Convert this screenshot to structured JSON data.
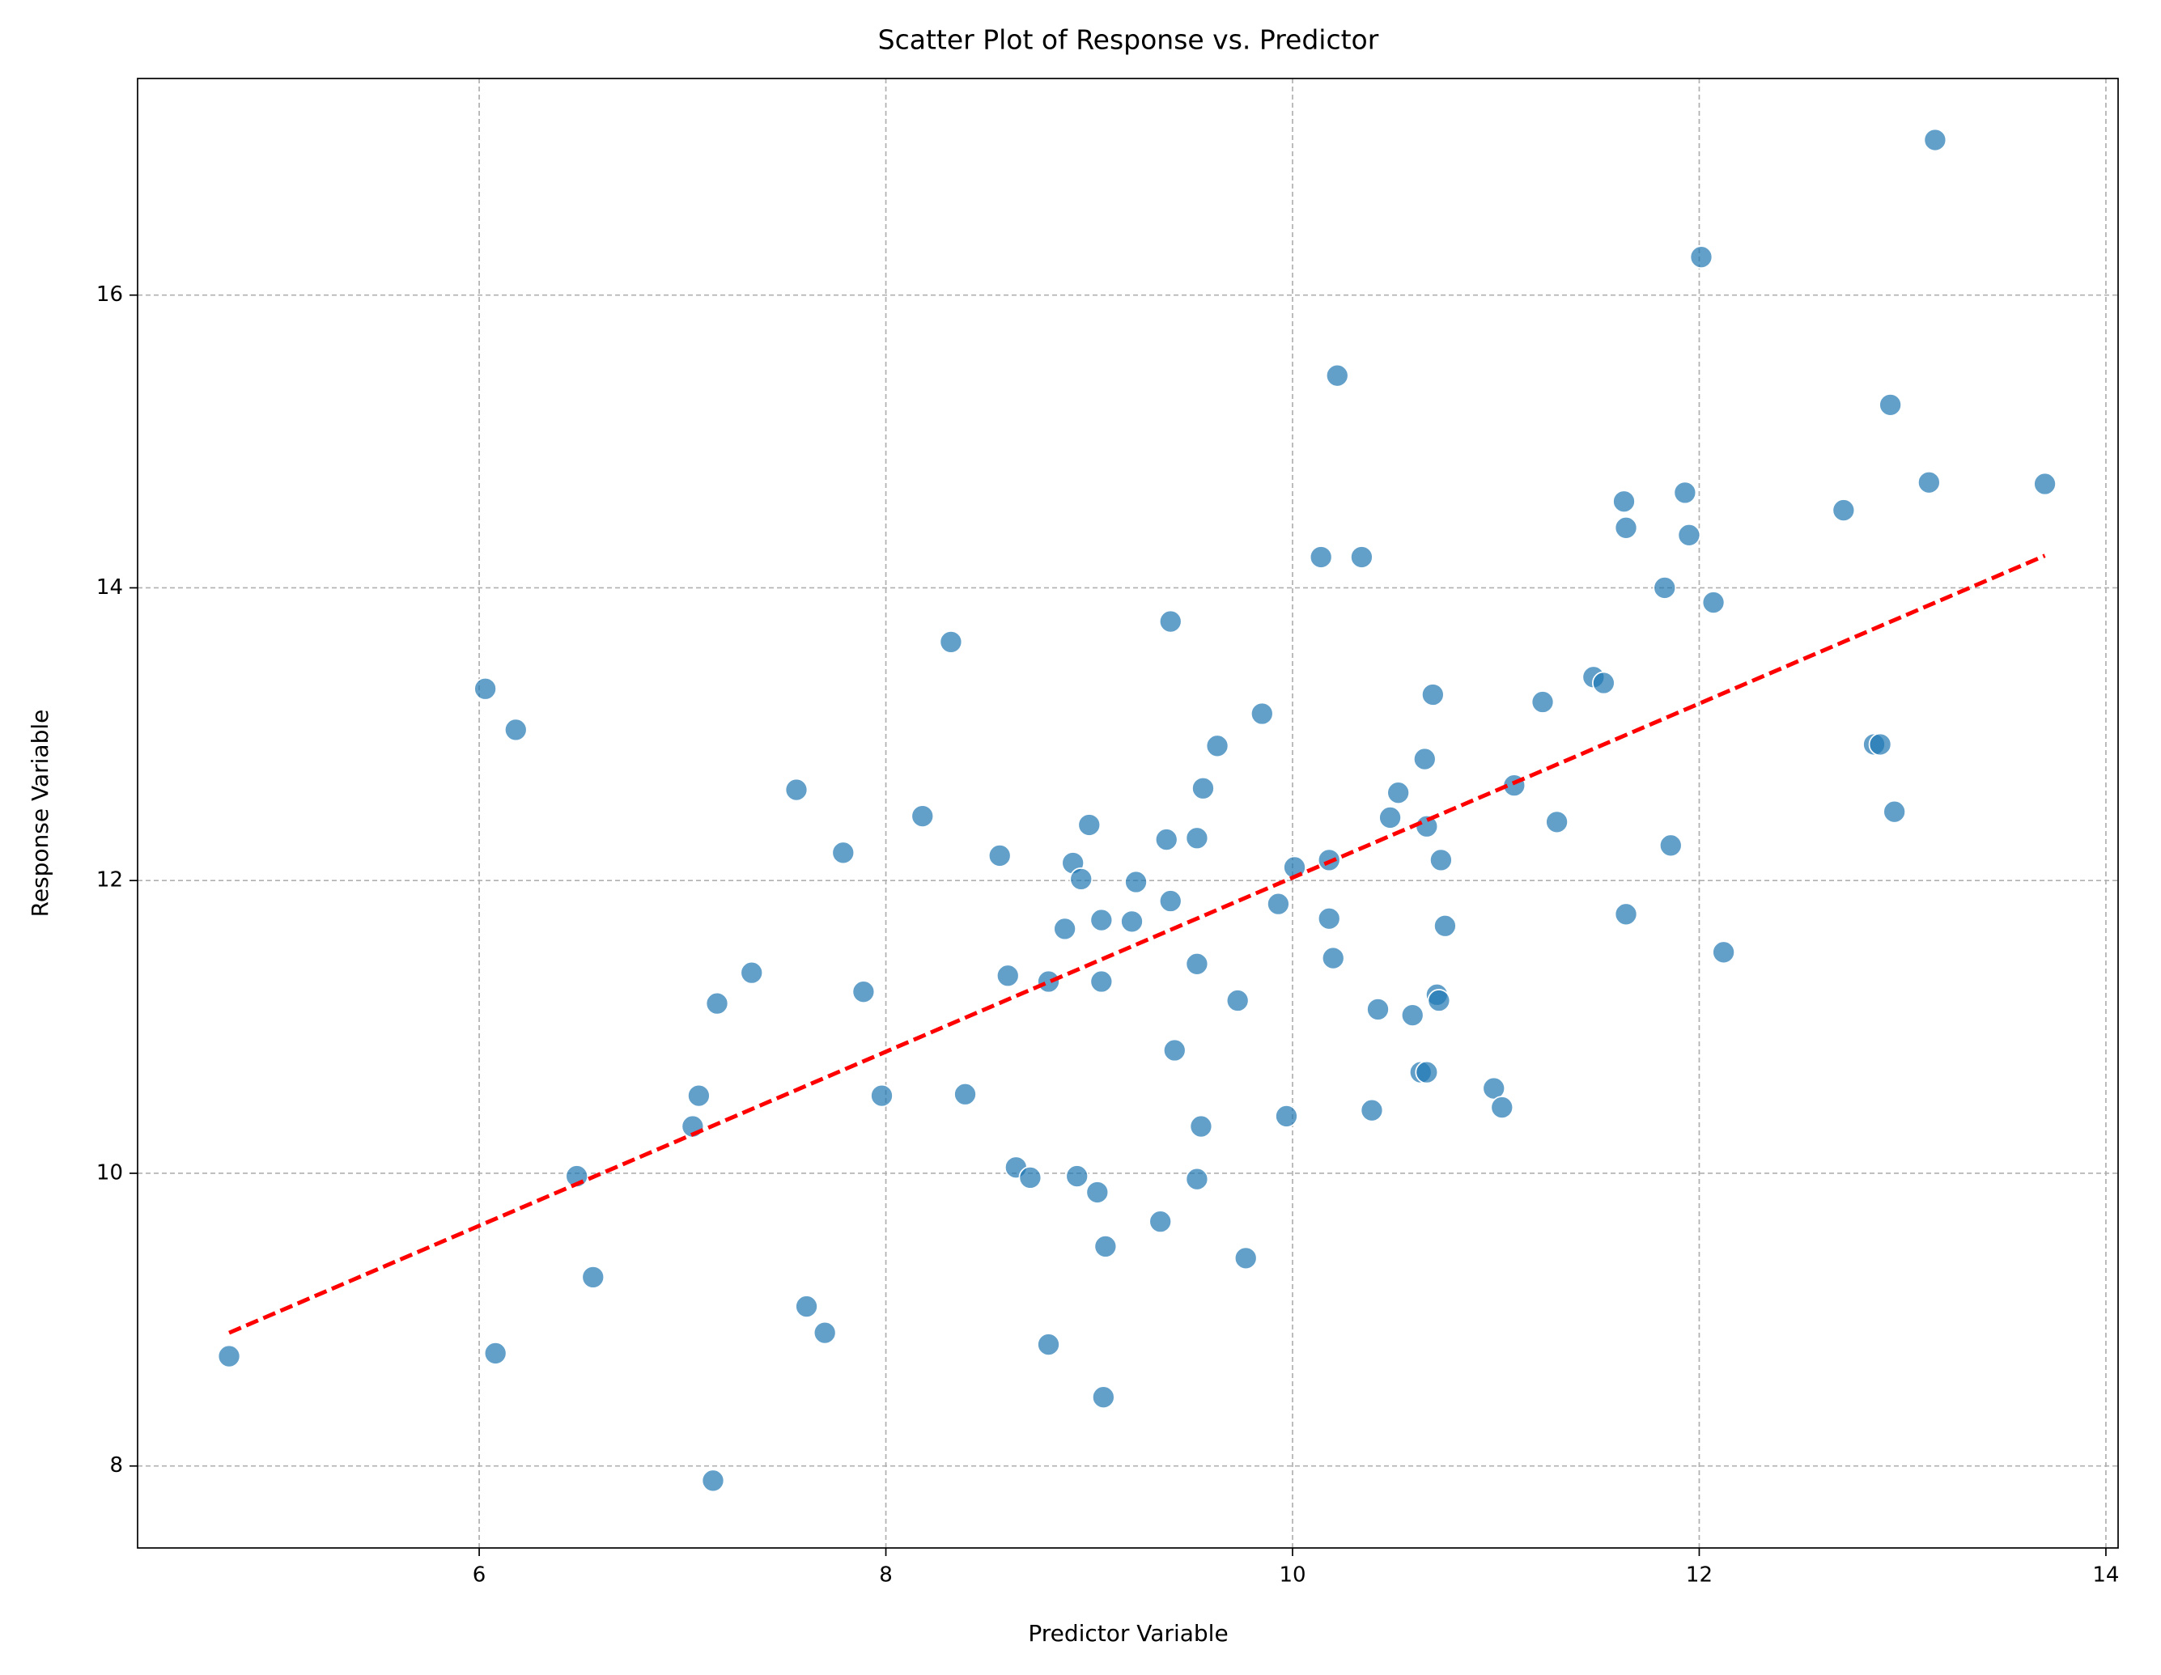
{
  "chart_data": {
    "type": "scatter",
    "title": "Scatter Plot of Response vs. Predictor",
    "x_label": "Predictor Variable",
    "y_label": "Response Variable",
    "xlim": [
      4.32,
      14.06
    ],
    "ylim": [
      7.44,
      17.48
    ],
    "xticks": [
      6,
      8,
      10,
      12,
      14
    ],
    "yticks": [
      8,
      10,
      12,
      14,
      16
    ],
    "grid": true,
    "series": [
      {
        "color": "#1f77b4",
        "x": [
          4.77,
          6.03,
          6.18,
          6.08,
          6.48,
          6.56,
          7.15,
          7.05,
          7.08,
          7.17,
          7.34,
          7.56,
          7.61,
          7.7,
          7.79,
          7.89,
          7.98,
          8.18,
          8.32,
          8.39,
          8.56,
          8.6,
          8.64,
          8.71,
          8.8,
          8.8,
          8.88,
          8.92,
          8.94,
          8.96,
          9.0,
          9.04,
          9.06,
          9.06,
          9.07,
          9.08,
          9.21,
          9.23,
          9.35,
          9.38,
          9.4,
          9.4,
          9.42,
          9.53,
          9.53,
          9.53,
          9.55,
          9.56,
          9.63,
          9.73,
          9.77,
          9.85,
          9.93,
          9.97,
          10.01,
          10.14,
          10.18,
          10.18,
          10.2,
          10.22,
          10.34,
          10.39,
          10.42,
          10.48,
          10.52,
          10.59,
          10.63,
          10.66,
          10.65,
          10.66,
          10.69,
          10.71,
          10.72,
          10.73,
          10.75,
          10.99,
          11.03,
          11.09,
          11.23,
          11.3,
          11.48,
          11.53,
          11.63,
          11.64,
          11.64,
          11.83,
          11.86,
          11.93,
          11.95,
          12.01,
          12.07,
          12.12,
          12.71,
          12.94,
          12.96,
          12.86,
          12.89,
          13.13,
          13.16,
          13.7
        ],
        "values": [
          8.75,
          13.31,
          13.03,
          8.77,
          9.98,
          9.29,
          7.9,
          10.32,
          10.53,
          11.16,
          11.37,
          12.62,
          9.09,
          8.91,
          12.19,
          11.24,
          10.53,
          12.44,
          13.63,
          10.54,
          12.17,
          11.35,
          10.04,
          9.97,
          8.83,
          11.31,
          11.67,
          12.12,
          9.98,
          12.01,
          12.38,
          9.87,
          11.73,
          11.31,
          8.47,
          9.5,
          11.72,
          11.99,
          9.67,
          12.28,
          13.77,
          11.86,
          10.84,
          11.43,
          12.29,
          9.96,
          10.32,
          12.63,
          12.92,
          11.18,
          9.42,
          13.14,
          11.84,
          10.39,
          12.09,
          14.21,
          12.14,
          11.74,
          11.47,
          15.45,
          14.21,
          10.43,
          11.12,
          12.43,
          12.6,
          11.08,
          10.69,
          10.69,
          12.83,
          12.37,
          13.27,
          11.22,
          11.18,
          12.14,
          11.69,
          10.58,
          10.45,
          12.65,
          13.22,
          12.4,
          13.39,
          13.35,
          14.59,
          14.41,
          11.77,
          14.0,
          12.24,
          14.65,
          14.36,
          16.26,
          13.9,
          11.51,
          14.53,
          15.25,
          12.47,
          12.93,
          12.93,
          14.72,
          17.06,
          14.71
        ]
      }
    ],
    "trend_line": {
      "color": "#ff0000",
      "x": [
        4.77,
        13.7
      ],
      "values": [
        8.91,
        14.22
      ]
    }
  }
}
